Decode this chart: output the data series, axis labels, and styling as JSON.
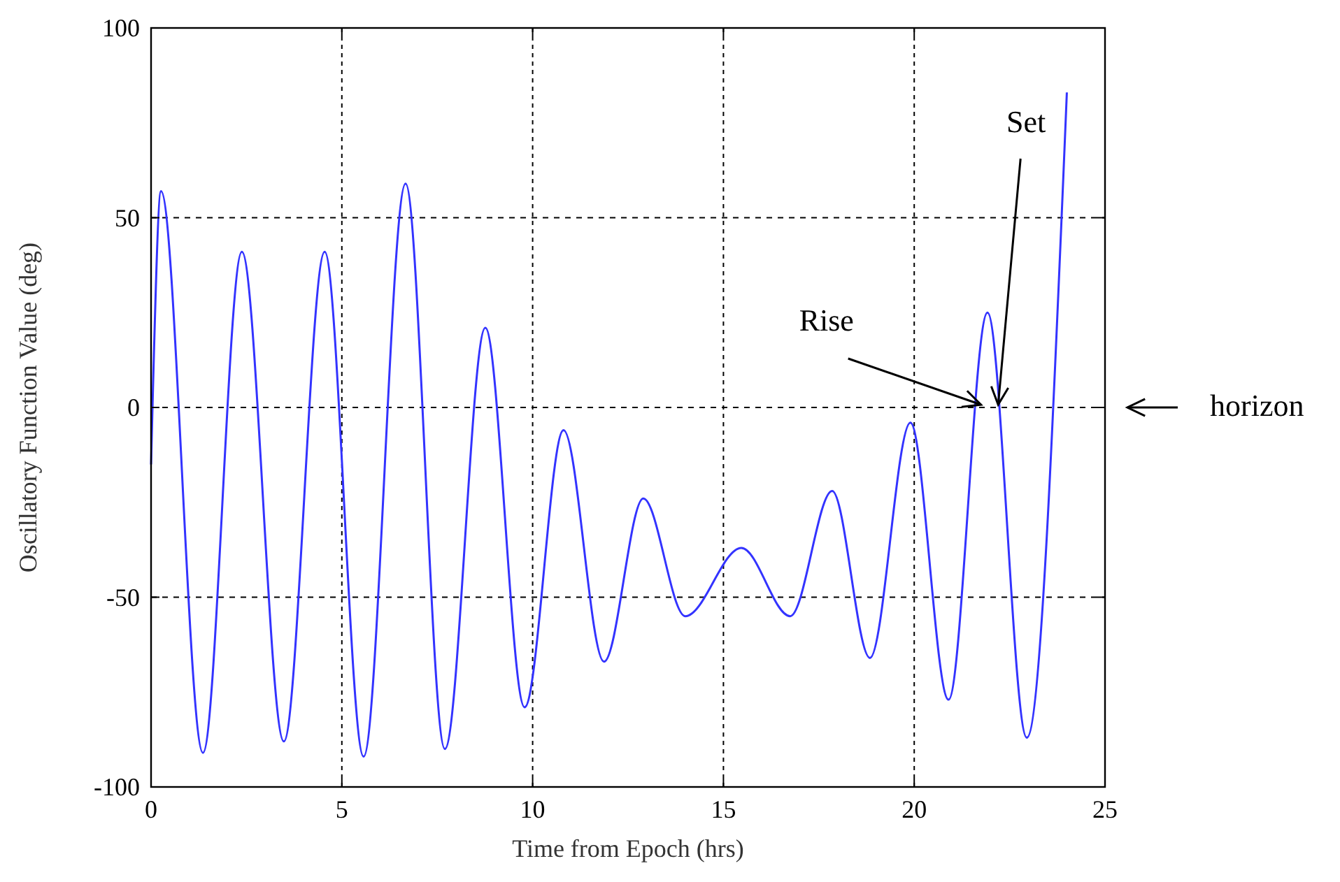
{
  "chart_data": {
    "type": "line",
    "xlabel": "Time from Epoch (hrs)",
    "ylabel": "Oscillatory Function Value (deg)",
    "xlim": [
      0,
      25
    ],
    "ylim": [
      -100,
      100
    ],
    "xticks": [
      0,
      5,
      10,
      15,
      20,
      25
    ],
    "yticks": [
      -100,
      -50,
      0,
      50,
      100
    ],
    "grid": true,
    "line_style": "solid",
    "series": [
      {
        "color": "#3333ff",
        "x": [
          0,
          0.05,
          0.26,
          1.36,
          2.38,
          3.48,
          4.55,
          5.57,
          6.67,
          7.7,
          8.76,
          9.79,
          10.81,
          11.87,
          12.9,
          14.0,
          15.47,
          16.75,
          17.85,
          18.84,
          19.9,
          20.9,
          21.92,
          22.95,
          24.0
        ],
        "values": [
          -15,
          5,
          57,
          -91,
          41,
          -88,
          41,
          -92,
          59,
          -90,
          21,
          -79,
          -6,
          -67,
          -24,
          -55,
          -37,
          -55,
          -22,
          -66,
          -4,
          -77,
          25,
          -87,
          83
        ]
      }
    ],
    "annotations": [
      {
        "text": "Rise",
        "x": 21.75,
        "y": 0
      },
      {
        "text": "Set",
        "x": 22.2,
        "y": 0
      },
      "horizon"
    ]
  }
}
